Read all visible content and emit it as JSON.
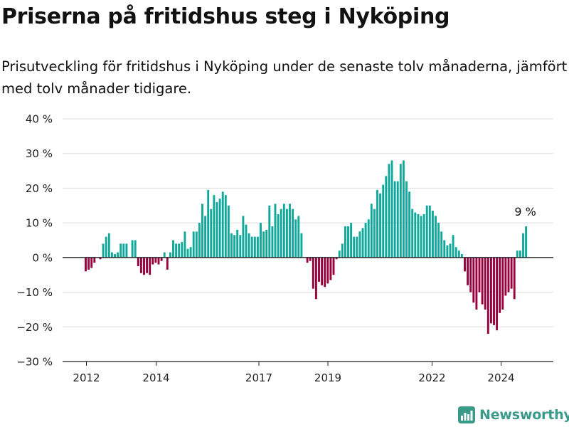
{
  "header": {
    "title": "Priserna på fritidshus steg i Nyköping",
    "subtitle": "Prisutveckling för fritidshus i Nyköping under de senaste tolv månaderna, jämfört med tolv månader tidigare."
  },
  "brand": {
    "name": "Newsworthy",
    "icon": "bar-chart-logo-icon",
    "color": "#3a9a8a"
  },
  "colors": {
    "positive": "#0fa89a",
    "negative": "#98003d",
    "grid": "#dddddd",
    "axis": "#222222",
    "text": "#222222"
  },
  "chart_data": {
    "type": "bar",
    "y_unit": "%",
    "ylim": [
      -30,
      40
    ],
    "y_ticks": [
      40,
      30,
      20,
      10,
      0,
      -10,
      -20,
      -30
    ],
    "y_tick_labels": [
      "40 %",
      "30 %",
      "20 %",
      "10 %",
      "0 %",
      "−10 %",
      "−20 %",
      "−30 %"
    ],
    "x_ticks": [
      "2012",
      "2014",
      "2017",
      "2019",
      "2022",
      "2024"
    ],
    "grid": true,
    "last_value_label": "9 %",
    "series": [
      {
        "frequency": "monthly",
        "values": [
          -4,
          -3.5,
          -3,
          -1.5,
          0,
          -0.5,
          4,
          6,
          7,
          1.5,
          1,
          1.5,
          4,
          4,
          4,
          0,
          5,
          5,
          -2.5,
          -4.5,
          -5,
          -4.5,
          -5,
          -2,
          -1.5,
          -2,
          -1,
          1.5,
          -3.5,
          1.5,
          5,
          4,
          4,
          4.5,
          7.5,
          2.5,
          3,
          7.5,
          7.5,
          10,
          15.5,
          12,
          19.5,
          14,
          18,
          16,
          17,
          19,
          18,
          15,
          7,
          6.5,
          8,
          6.5,
          12,
          9.5,
          7,
          6,
          6,
          6,
          10,
          7.5,
          8,
          15,
          9,
          15.5,
          12.5,
          14,
          15.5,
          14,
          15.5,
          14,
          11,
          12,
          7,
          0,
          -1.5,
          -1,
          -9,
          -12,
          -7,
          -8,
          -8.5,
          -7.5,
          -6.5,
          -5,
          -0.5,
          2,
          4,
          9,
          9,
          10,
          6,
          6,
          7.5,
          8.5,
          10,
          11,
          15.5,
          14,
          19.5,
          18.5,
          21,
          23.5,
          27,
          28,
          22,
          22,
          27,
          28,
          22,
          19,
          14,
          13,
          12.5,
          12,
          12.5,
          15,
          15,
          13.5,
          12,
          10,
          7.5,
          5,
          3.5,
          4,
          6.5,
          3,
          2,
          1,
          -4,
          -8,
          -10,
          -13,
          -15,
          -10,
          -13.5,
          -15,
          -22,
          -19,
          -19.5,
          -21,
          -16,
          -15,
          -11,
          -10,
          -9,
          -12,
          2,
          2,
          7,
          9
        ]
      }
    ]
  }
}
